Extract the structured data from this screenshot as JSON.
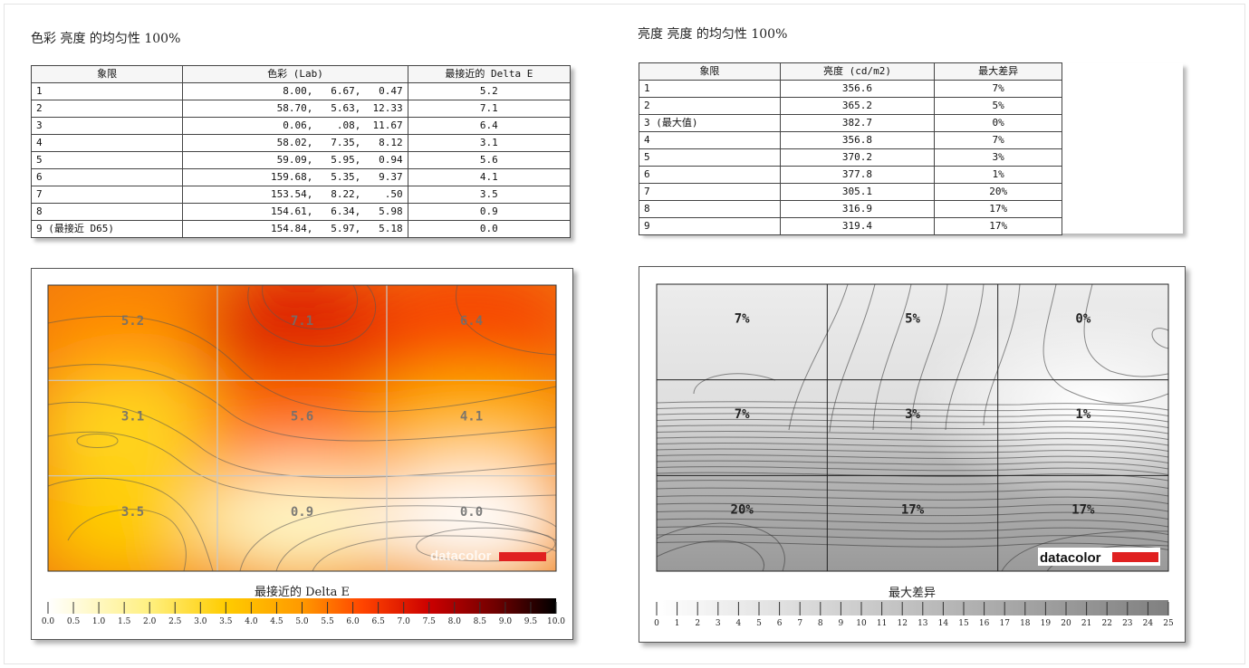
{
  "left": {
    "title": "色彩 亮度 的均匀性 100%",
    "table": {
      "headers": [
        "象限",
        "色彩 (Lab)",
        "最接近的 Delta E"
      ],
      "rows": [
        [
          "1",
          "8.00,   6.67,   0.47",
          "5.2"
        ],
        [
          "2",
          "58.70,   5.63,  12.33",
          "7.1"
        ],
        [
          "3",
          "0.06,    .08,  11.67",
          "6.4"
        ],
        [
          "4",
          "58.02,   7.35,   8.12",
          "3.1"
        ],
        [
          "5",
          "59.09,   5.95,   0.94",
          "5.6"
        ],
        [
          "6",
          "159.68,   5.35,   9.37",
          "4.1"
        ],
        [
          "7",
          "153.54,   8.22,    .50",
          "3.5"
        ],
        [
          "8",
          "154.61,   6.34,   5.98",
          "0.9"
        ],
        [
          "9 (最接近 D65)",
          "154.84,   5.97,   5.18",
          "0.0"
        ]
      ]
    },
    "legend_title": "最接近的 Delta E",
    "legend_ticks": [
      "0.0",
      "0.5",
      "1.0",
      "1.5",
      "2.0",
      "2.5",
      "3.0",
      "3.5",
      "4.0",
      "4.5",
      "5.0",
      "5.5",
      "6.0",
      "6.5",
      "7.0",
      "7.5",
      "8.0",
      "8.5",
      "9.0",
      "9.5",
      "10.0"
    ],
    "watermark": "datacolor"
  },
  "right": {
    "title": "亮度 亮度 的均匀性 100%",
    "table": {
      "headers": [
        "象限",
        "亮度 (cd/m2)",
        "最大差异"
      ],
      "rows": [
        [
          "1",
          "356.6",
          "7%"
        ],
        [
          "2",
          "365.2",
          "5%"
        ],
        [
          "3 (最大值)",
          "382.7",
          "0%"
        ],
        [
          "4",
          "356.8",
          "7%"
        ],
        [
          "5",
          "370.2",
          "3%"
        ],
        [
          "6",
          "377.8",
          "1%"
        ],
        [
          "7",
          "305.1",
          "20%"
        ],
        [
          "8",
          "316.9",
          "17%"
        ],
        [
          "9",
          "319.4",
          "17%"
        ]
      ]
    },
    "legend_title": "最大差异",
    "legend_ticks": [
      "0",
      "1",
      "2",
      "3",
      "4",
      "5",
      "6",
      "7",
      "8",
      "9",
      "10",
      "11",
      "12",
      "13",
      "14",
      "15",
      "16",
      "17",
      "18",
      "19",
      "20",
      "21",
      "22",
      "23",
      "24",
      "25"
    ],
    "watermark": "datacolor"
  },
  "chart_data": [
    {
      "type": "heatmap",
      "title": "",
      "legend_title": "最接近的 Delta E",
      "grid": "3x3",
      "values": [
        [
          5.2,
          7.1,
          6.4
        ],
        [
          3.1,
          5.6,
          4.1
        ],
        [
          3.5,
          0.9,
          0.0
        ]
      ],
      "labels": [
        [
          "5.2",
          "7.1",
          "6.4"
        ],
        [
          "3.1",
          "5.6",
          "4.1"
        ],
        [
          "3.5",
          "0.9",
          "0.0"
        ]
      ],
      "scale": [
        0,
        10
      ],
      "colormap": [
        "#ffffff",
        "#ffd400",
        "#ff8800",
        "#e02000",
        "#b00000",
        "#000000"
      ]
    },
    {
      "type": "heatmap",
      "title": "",
      "legend_title": "最大差异",
      "grid": "3x3",
      "values": [
        [
          7,
          5,
          0
        ],
        [
          7,
          3,
          1
        ],
        [
          20,
          17,
          17
        ]
      ],
      "labels": [
        [
          "7%",
          "5%",
          "0%"
        ],
        [
          "7%",
          "3%",
          "1%"
        ],
        [
          "20%",
          "17%",
          "17%"
        ]
      ],
      "scale": [
        0,
        25
      ],
      "colormap": [
        "#ffffff",
        "#808080"
      ]
    }
  ]
}
